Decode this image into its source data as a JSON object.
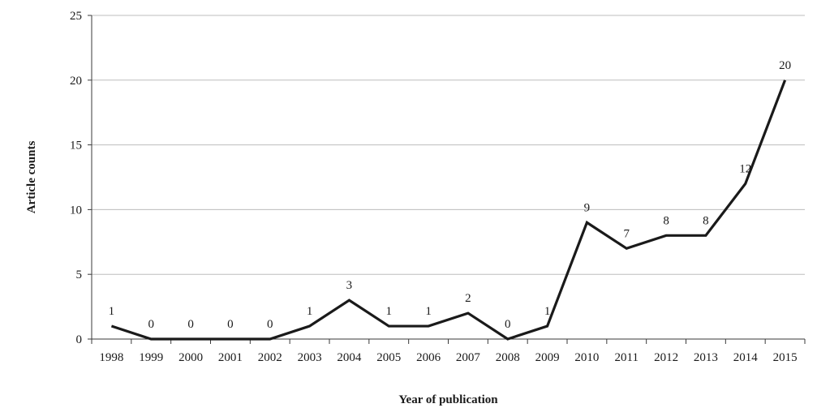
{
  "chart_data": {
    "type": "line",
    "title": "",
    "xlabel": "Year of publication",
    "ylabel": "Article counts",
    "categories": [
      "1998",
      "1999",
      "2000",
      "2001",
      "2002",
      "2003",
      "2004",
      "2005",
      "2006",
      "2007",
      "2008",
      "2009",
      "2010",
      "2011",
      "2012",
      "2013",
      "2014",
      "2015"
    ],
    "series": [
      {
        "values": [
          1,
          0,
          0,
          0,
          0,
          1,
          3,
          1,
          1,
          2,
          0,
          1,
          9,
          7,
          8,
          8,
          12,
          20
        ],
        "data_labels": [
          "1",
          "0",
          "0",
          "0",
          "0",
          "1",
          "3",
          "1",
          "1",
          "2",
          "0",
          "1",
          "9",
          "7",
          "8",
          "8",
          "12",
          "20"
        ],
        "color": "#1a1a1a"
      }
    ],
    "ylim": [
      0,
      25
    ],
    "yticks": [
      0,
      5,
      10,
      15,
      20,
      25
    ],
    "ytick_labels": [
      "0",
      "5",
      "10",
      "15",
      "20",
      "25"
    ],
    "grid": true,
    "legend": "none"
  }
}
